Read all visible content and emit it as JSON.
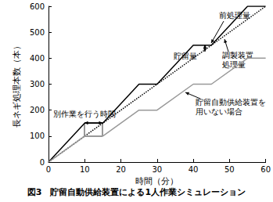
{
  "chart_data": {
    "type": "line",
    "title": "図3　貯留自動供給装置による1人作業シミュレーション",
    "x_label": "時間（分）",
    "y_label": "長ネギ処理本数（本）",
    "x": [
      0,
      10,
      15,
      25,
      30,
      40,
      45,
      55,
      60
    ],
    "series": [
      {
        "name": "前処理量",
        "color": "#000000",
        "line_style": "solid",
        "values": [
          0,
          150,
          150,
          300,
          300,
          450,
          450,
          600,
          600
        ]
      },
      {
        "name": "調製装置処理量",
        "color": "#000000",
        "line_style": "dotted",
        "values": [
          0,
          100,
          150,
          250,
          300,
          400,
          450,
          550,
          600
        ]
      },
      {
        "name": "貯留自動供給装置を用いない場合",
        "color": "#999999",
        "line_style": "solid",
        "values": [
          0,
          100,
          100,
          200,
          200,
          300,
          300,
          400,
          400
        ]
      }
    ],
    "annotations": [
      "貯留量",
      "別作業を行う時間"
    ],
    "xlim": [
      0,
      60
    ],
    "xticks": [
      0,
      10,
      20,
      30,
      40,
      50,
      60
    ],
    "ylim": [
      0,
      600
    ],
    "yticks": [
      0,
      100,
      200,
      300,
      400,
      500,
      600
    ],
    "grid": false
  }
}
